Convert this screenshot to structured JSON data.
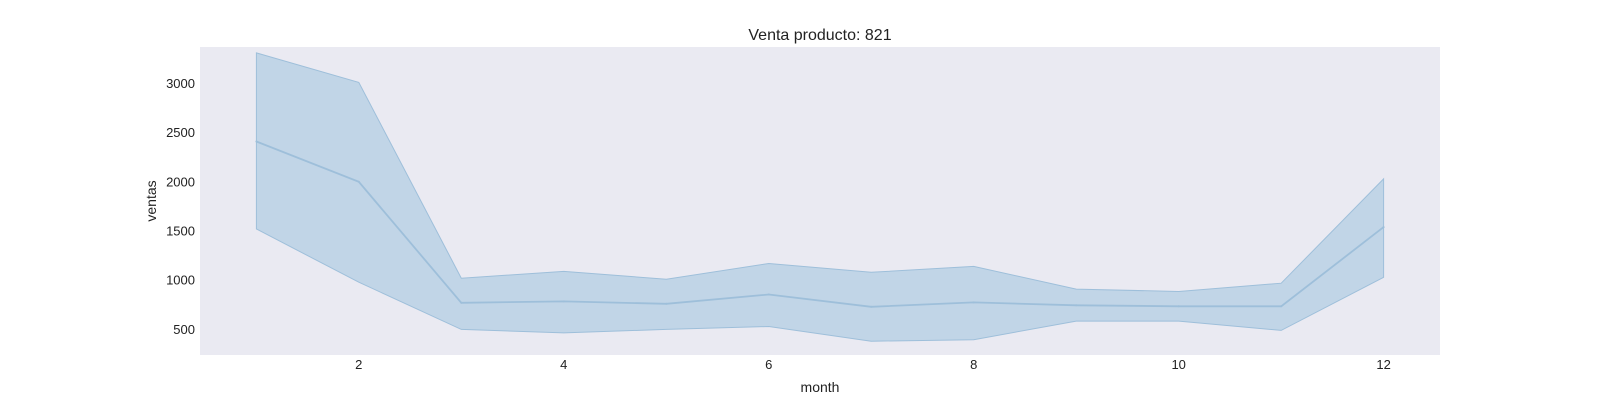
{
  "chart_data": {
    "type": "line",
    "title": "Venta producto: 821",
    "xlabel": "month",
    "ylabel": "ventas",
    "xlim": [
      0.45,
      12.55
    ],
    "ylim": [
      240,
      3370
    ],
    "xticks": [
      2,
      4,
      6,
      8,
      10,
      12
    ],
    "yticks": [
      500,
      1000,
      1500,
      2000,
      2500,
      3000
    ],
    "grid": false,
    "legend": "none",
    "x": [
      1,
      2,
      3,
      4,
      5,
      6,
      7,
      8,
      9,
      10,
      11,
      12
    ],
    "series": [
      {
        "values": [
          2410,
          2000,
          770,
          785,
          760,
          855,
          730,
          775,
          745,
          735,
          735,
          1540
        ],
        "lower": [
          1520,
          980,
          500,
          465,
          500,
          530,
          380,
          395,
          585,
          585,
          490,
          1030
        ],
        "upper": [
          3310,
          3010,
          1020,
          1090,
          1010,
          1170,
          1080,
          1140,
          910,
          885,
          970,
          2030
        ]
      }
    ],
    "colors": {
      "plot_background": "#eaeaf2",
      "line": "#9ebfda",
      "band_fill": "#b3cde3",
      "band_edge": "#9ebfda"
    }
  }
}
